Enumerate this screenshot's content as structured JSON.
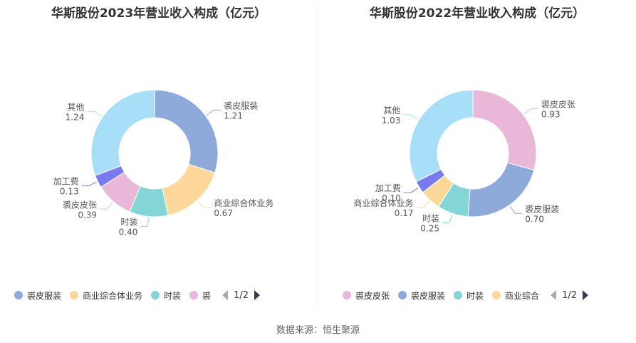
{
  "chart_data": [
    {
      "type": "pie",
      "title": "华斯股份2023年营业收入构成（亿元）",
      "unit": "亿元",
      "slices": [
        {
          "name": "裘皮服装",
          "value": 1.21,
          "color": "#8eaadb"
        },
        {
          "name": "商业综合体业务",
          "value": 0.67,
          "color": "#fdd89a"
        },
        {
          "name": "时装",
          "value": 0.4,
          "color": "#84d6d6"
        },
        {
          "name": "裘皮皮张",
          "value": 0.39,
          "color": "#e9b8d8"
        },
        {
          "name": "加工费",
          "value": 0.13,
          "color": "#7a7af0"
        },
        {
          "name": "其他",
          "value": 1.24,
          "color": "#a8dff8"
        }
      ],
      "legend": {
        "items": [
          {
            "name": "裘皮服装",
            "color": "#8eaadb"
          },
          {
            "name": "商业综合体业务",
            "color": "#fdd89a"
          },
          {
            "name": "时装",
            "color": "#84d6d6"
          },
          {
            "name": "裘",
            "color": "#e9b8d8"
          }
        ],
        "page": "1/2",
        "placement": "bottom"
      }
    },
    {
      "type": "pie",
      "title": "华斯股份2022年营业收入构成（亿元）",
      "unit": "亿元",
      "slices": [
        {
          "name": "裘皮皮张",
          "value": 0.93,
          "color": "#e9b8d8"
        },
        {
          "name": "裘皮服装",
          "value": 0.7,
          "color": "#8eaadb"
        },
        {
          "name": "时装",
          "value": 0.25,
          "color": "#84d6d6"
        },
        {
          "name": "商业综合体业务",
          "value": 0.17,
          "color": "#fdd89a"
        },
        {
          "name": "加工费",
          "value": 0.1,
          "color": "#7a7af0"
        },
        {
          "name": "其他",
          "value": 1.03,
          "color": "#a8dff8"
        }
      ],
      "legend": {
        "items": [
          {
            "name": "裘皮皮张",
            "color": "#e9b8d8"
          },
          {
            "name": "裘皮服装",
            "color": "#8eaadb"
          },
          {
            "name": "时装",
            "color": "#84d6d6"
          },
          {
            "name": "商业综合",
            "color": "#fdd89a"
          }
        ],
        "page": "1/2",
        "placement": "bottom"
      }
    }
  ],
  "footer": {
    "source": "数据来源：恒生聚源"
  }
}
